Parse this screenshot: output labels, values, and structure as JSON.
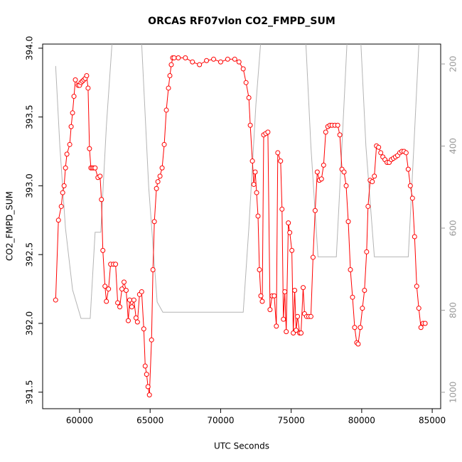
{
  "chart_data": {
    "type": "line",
    "title": "ORCAS RF07vlon CO2_FMPD_SUM",
    "xlabel": "UTC Seconds",
    "ylabel": "CO2_FMPD_SUM",
    "xlim": [
      57380,
      85600
    ],
    "xticks": [
      60000,
      65000,
      70000,
      75000,
      80000,
      85000
    ],
    "ylim": [
      391.38,
      394.03
    ],
    "yticks": [
      391.5,
      {
        "value": 392.0,
        "label": "392.0"
      },
      392.5,
      {
        "value": 393.0,
        "label": "393.0"
      },
      393.5,
      {
        "value": 394.0,
        "label": "394.0"
      }
    ],
    "y2lim": [
      151.5,
      1040
    ],
    "y2_reversed": true,
    "y2ticks": [
      200,
      400,
      600,
      800,
      1000
    ],
    "series": [
      {
        "color": "#ff0000",
        "markers": true,
        "x": [
          58300,
          58500,
          58700,
          58800,
          58900,
          59000,
          59100,
          59300,
          59400,
          59500,
          59600,
          59700,
          59900,
          60000,
          60100,
          60200,
          60300,
          60400,
          60500,
          60600,
          60700,
          60800,
          60900,
          61000,
          61100,
          61300,
          61450,
          61550,
          61650,
          61800,
          61900,
          62050,
          62200,
          62400,
          62550,
          62700,
          62850,
          63000,
          63150,
          63300,
          63450,
          63550,
          63700,
          63850,
          64000,
          64100,
          64250,
          64400,
          64550,
          64650,
          64750,
          64850,
          64950,
          65100,
          65200,
          65300,
          65450,
          65550,
          65700,
          65850,
          66000,
          66150,
          66300,
          66400,
          66500,
          66600,
          66700,
          67000,
          67500,
          68000,
          68500,
          69000,
          69500,
          70000,
          70500,
          71000,
          71300,
          71600,
          71800,
          72000,
          72100,
          72250,
          72350,
          72450,
          72550,
          72650,
          72750,
          72850,
          72950,
          73050,
          73200,
          73350,
          73500,
          73650,
          73800,
          73950,
          74050,
          74250,
          74350,
          74450,
          74550,
          74650,
          74800,
          74900,
          75050,
          75150,
          75250,
          75350,
          75450,
          75600,
          75700,
          75850,
          75950,
          76100,
          76250,
          76400,
          76550,
          76700,
          76850,
          77000,
          77150,
          77300,
          77450,
          77600,
          77750,
          77900,
          78100,
          78300,
          78450,
          78600,
          78750,
          78900,
          79050,
          79200,
          79350,
          79500,
          79650,
          79750,
          79900,
          80050,
          80200,
          80350,
          80450,
          80600,
          80750,
          80900,
          81050,
          81200,
          81350,
          81500,
          81650,
          81800,
          81950,
          82100,
          82250,
          82400,
          82550,
          82700,
          82850,
          83000,
          83150,
          83300,
          83450,
          83600,
          83750,
          83900,
          84050,
          84200,
          84350,
          84500
        ],
        "values": [
          392.17,
          392.75,
          392.85,
          392.95,
          393.0,
          393.13,
          393.23,
          393.3,
          393.43,
          393.53,
          393.65,
          393.77,
          393.73,
          393.73,
          393.75,
          393.76,
          393.77,
          393.78,
          393.8,
          393.71,
          393.27,
          393.13,
          393.13,
          393.13,
          393.13,
          393.06,
          393.07,
          392.9,
          392.53,
          392.27,
          392.16,
          392.25,
          392.43,
          392.43,
          392.43,
          392.15,
          392.12,
          392.25,
          392.3,
          392.24,
          392.02,
          392.17,
          392.12,
          392.17,
          392.04,
          392.01,
          392.21,
          392.23,
          391.96,
          391.69,
          391.63,
          391.54,
          391.48,
          391.88,
          392.39,
          392.74,
          392.98,
          393.03,
          393.07,
          393.13,
          393.3,
          393.55,
          393.71,
          393.8,
          393.88,
          393.93,
          393.93,
          393.93,
          393.93,
          393.9,
          393.88,
          393.91,
          393.92,
          393.9,
          393.92,
          393.92,
          393.9,
          393.85,
          393.75,
          393.64,
          393.44,
          393.18,
          393.01,
          393.1,
          392.95,
          392.78,
          392.39,
          392.2,
          392.16,
          393.37,
          393.38,
          393.39,
          392.1,
          392.2,
          392.2,
          391.98,
          393.24,
          393.18,
          392.83,
          392.03,
          392.23,
          391.94,
          392.73,
          392.66,
          392.53,
          391.93,
          392.24,
          391.95,
          392.05,
          391.93,
          391.93,
          392.26,
          392.07,
          392.05,
          392.05,
          392.05,
          392.48,
          392.82,
          393.1,
          393.04,
          393.05,
          393.15,
          393.39,
          393.43,
          393.44,
          393.44,
          393.44,
          393.44,
          393.37,
          393.12,
          393.1,
          393.0,
          392.74,
          392.39,
          392.19,
          391.97,
          391.86,
          391.85,
          391.97,
          392.11,
          392.24,
          392.52,
          392.85,
          393.04,
          393.03,
          393.07,
          393.29,
          393.28,
          393.24,
          393.21,
          393.19,
          393.17,
          393.17,
          393.19,
          393.2,
          393.21,
          393.22,
          393.24,
          393.25,
          393.25,
          393.24,
          393.12,
          393.0,
          392.91,
          392.63,
          392.27,
          392.11,
          391.97,
          392.0,
          392.0
        ]
      },
      {
        "color": "#b4b4b4",
        "axis": "y2",
        "markers": false,
        "x": [
          58300,
          58600,
          59000,
          59500,
          60100,
          60750,
          61100,
          61500,
          61900,
          62300,
          62600,
          64000,
          64400,
          64900,
          65500,
          65900,
          71600,
          72000,
          72500,
          72900,
          74000,
          76000,
          76400,
          76900,
          78200,
          78600,
          79000,
          79500,
          79900,
          80300,
          80900,
          83300,
          83700,
          84100
        ],
        "values": [
          205,
          400,
          600,
          750,
          820,
          820,
          610,
          610,
          350,
          150,
          null,
          100,
          150,
          500,
          780,
          805,
          805,
          600,
          300,
          120,
          null,
          120,
          400,
          670,
          670,
          400,
          120,
          null,
          120,
          400,
          670,
          670,
          400,
          120
        ]
      }
    ]
  }
}
